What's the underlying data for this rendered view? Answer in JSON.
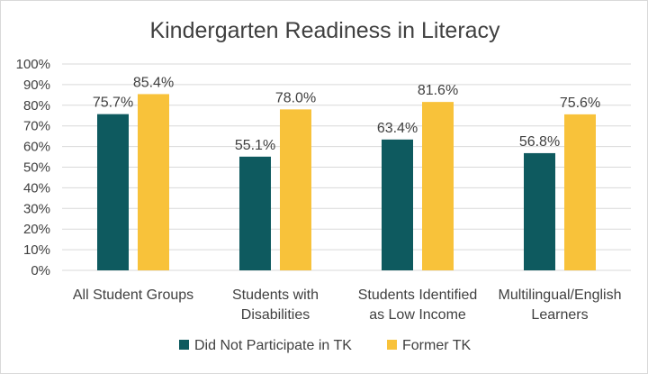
{
  "chart_data": {
    "type": "bar",
    "title": "Kindergarten Readiness in Literacy",
    "categories": [
      [
        "All Student Groups"
      ],
      [
        "Students with",
        "Disabilities"
      ],
      [
        "Students Identified",
        "as Low Income"
      ],
      [
        "Multilingual/English",
        "Learners"
      ]
    ],
    "series": [
      {
        "name": "Did Not Participate in TK",
        "color": "#0e5a5f",
        "values": [
          75.7,
          55.1,
          63.4,
          56.8
        ],
        "labels": [
          "75.7%",
          "55.1%",
          "63.4%",
          "56.8%"
        ]
      },
      {
        "name": "Former TK",
        "color": "#f8c23a",
        "values": [
          85.4,
          78.0,
          81.6,
          75.6
        ],
        "labels": [
          "85.4%",
          "78.0%",
          "81.6%",
          "75.6%"
        ]
      }
    ],
    "yticks": [
      "0%",
      "10%",
      "20%",
      "30%",
      "40%",
      "50%",
      "60%",
      "70%",
      "80%",
      "90%",
      "100%"
    ],
    "ylim": [
      0,
      100
    ],
    "grid": true,
    "gridColor": "#d9d9d9",
    "legend": "bottom-center"
  }
}
